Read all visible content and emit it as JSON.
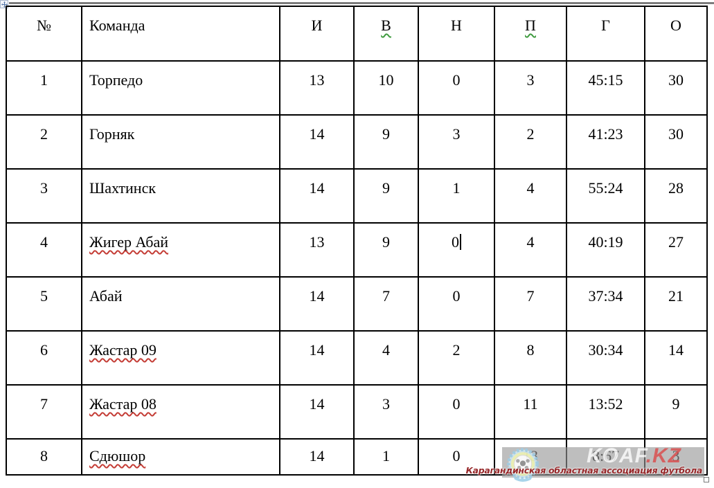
{
  "app": {
    "kind": "word-processor-table-view",
    "spell_red_color": "#c43c35",
    "spell_green_color": "#3f9b3f",
    "border_color": "#000000",
    "top_edge_color": "#7d7d7d"
  },
  "table": {
    "header": [
      {
        "key": "num",
        "label": "№",
        "spell": false
      },
      {
        "key": "team",
        "label": "Команда",
        "spell": false
      },
      {
        "key": "games",
        "label": "И",
        "spell": false
      },
      {
        "key": "wins",
        "label": "В",
        "spell": "green"
      },
      {
        "key": "draws",
        "label": "Н",
        "spell": false
      },
      {
        "key": "losses",
        "label": "П",
        "spell": "green"
      },
      {
        "key": "goals",
        "label": "Г",
        "spell": false
      },
      {
        "key": "points",
        "label": "О",
        "spell": false
      }
    ],
    "rows": [
      {
        "cells": [
          "1",
          "Торпедо",
          "13",
          "10",
          "0",
          "3",
          "45:15",
          "30"
        ],
        "team_spell": false,
        "caret_cell": -1
      },
      {
        "cells": [
          "2",
          "Горняк",
          "14",
          "9",
          "3",
          "2",
          "41:23",
          "30"
        ],
        "team_spell": false,
        "caret_cell": -1
      },
      {
        "cells": [
          "3",
          "Шахтинск",
          "14",
          "9",
          "1",
          "4",
          "55:24",
          "28"
        ],
        "team_spell": false,
        "caret_cell": -1
      },
      {
        "cells": [
          "4",
          "Жигер Абай",
          "13",
          "9",
          "0",
          "4",
          "40:19",
          "27"
        ],
        "team_spell": true,
        "caret_cell": 4
      },
      {
        "cells": [
          "5",
          "Абай",
          "14",
          "7",
          "0",
          "7",
          "37:34",
          "21"
        ],
        "team_spell": false,
        "caret_cell": -1
      },
      {
        "cells": [
          "6",
          "Жастар 09",
          "14",
          "4",
          "2",
          "8",
          "30:34",
          "14"
        ],
        "team_spell": true,
        "caret_cell": -1
      },
      {
        "cells": [
          "7",
          "Жастар 08",
          "14",
          "3",
          "0",
          "11",
          "13:52",
          "9"
        ],
        "team_spell": true,
        "caret_cell": -1
      },
      {
        "cells": [
          "8",
          "Сдюшор",
          "14",
          "1",
          "0",
          "13",
          "8:67",
          "3"
        ],
        "team_spell": true,
        "caret_cell": -1
      }
    ]
  },
  "watermark": {
    "brand": "KOAF",
    "brand_suffix": ".KZ",
    "tagline": "Карагандинская областная ассоциация футбола",
    "logo_icon": "soccer-ball-badge",
    "overlay_color": "#969696",
    "brand_color": "#ffffff",
    "suffix_color": "#db4c4c",
    "tagline_color": "#97282a"
  }
}
